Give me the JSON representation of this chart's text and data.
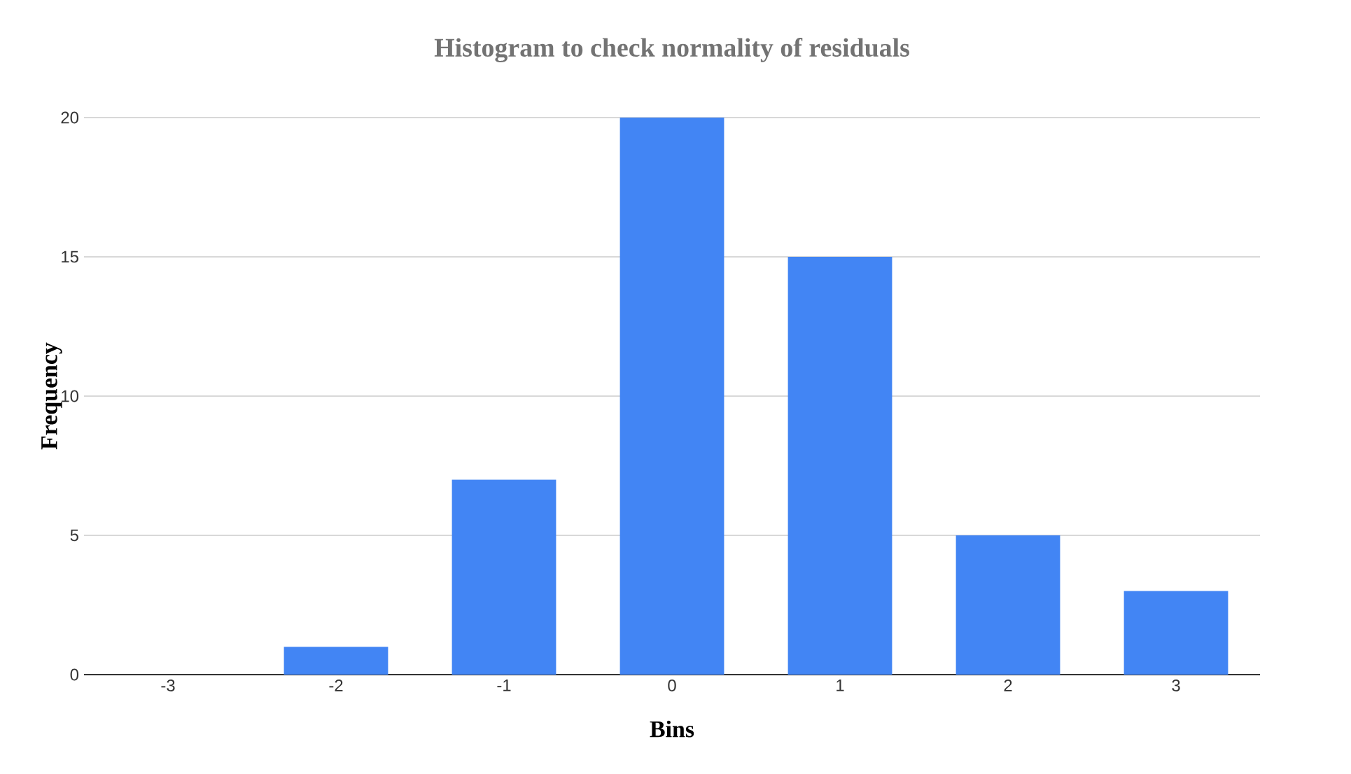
{
  "chart_data": {
    "type": "bar",
    "title": "Histogram to check normality of residuals",
    "xlabel": "Bins",
    "ylabel": "Frequency",
    "categories": [
      "-3",
      "-2",
      "-1",
      "0",
      "1",
      "2",
      "3"
    ],
    "values": [
      0,
      1,
      7,
      20,
      15,
      5,
      3
    ],
    "color": "#4285f4",
    "ylim": [
      0,
      20
    ],
    "yticks": [
      0,
      5,
      10,
      15,
      20
    ],
    "grid": "y"
  }
}
